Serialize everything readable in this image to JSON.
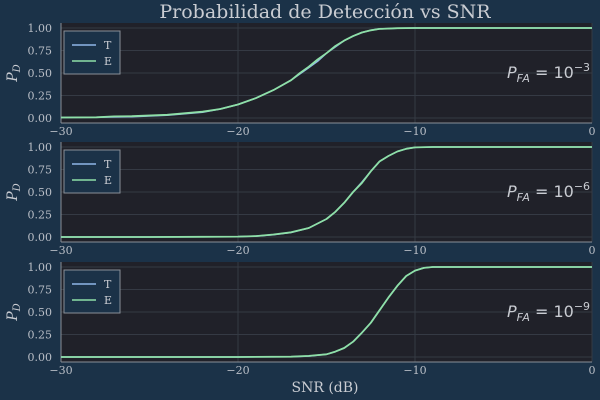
{
  "chart_data": {
    "type": "line",
    "title": "Probabilidad de Detección vs SNR",
    "xlabel": "SNR (dB)",
    "xlim": [
      -30,
      0
    ],
    "ylim": [
      0,
      1
    ],
    "x_ticks": [
      -30,
      -20,
      -10,
      0
    ],
    "x_tick_labels": [
      "−30",
      "−20",
      "−10",
      "0"
    ],
    "y_ticks": [
      0,
      0.25,
      0.5,
      0.75,
      1
    ],
    "y_tick_labels": [
      "0.00",
      "0.25",
      "0.50",
      "0.75",
      "1.00"
    ],
    "grid": true,
    "legend_placement": "top-left",
    "colors": {
      "T": "#8fb6e8",
      "E": "#8ee0a8"
    },
    "subplots": [
      {
        "ylabel_main": "P",
        "ylabel_sub": "D",
        "annotation": {
          "base": "P",
          "sub": "FA",
          "eq": " = 10",
          "sup": "−3"
        },
        "series": [
          {
            "name": "T",
            "x": [
              -30,
              -28,
              -26,
              -24,
              -22,
              -21,
              -20,
              -19,
              -18,
              -17,
              -16,
              -15.5,
              -15,
              -14.5,
              -14,
              -13.5,
              -13,
              -12.5,
              -12,
              -11,
              -10,
              -8,
              -5,
              0
            ],
            "y": [
              0.005,
              0.008,
              0.015,
              0.03,
              0.065,
              0.1,
              0.15,
              0.22,
              0.31,
              0.42,
              0.56,
              0.63,
              0.72,
              0.79,
              0.86,
              0.91,
              0.95,
              0.975,
              0.99,
              0.998,
              1,
              1,
              1,
              1
            ]
          },
          {
            "name": "E",
            "x": [
              -30,
              -28,
              -27,
              -26,
              -24,
              -22,
              -21,
              -20,
              -19,
              -18,
              -17,
              -16.5,
              -16,
              -15.5,
              -15,
              -14.5,
              -14,
              -13.5,
              -13,
              -12.5,
              -12,
              -11,
              -10,
              -8,
              -5,
              0
            ],
            "y": [
              0.005,
              0.008,
              0.018,
              0.02,
              0.035,
              0.07,
              0.1,
              0.15,
              0.22,
              0.31,
              0.42,
              0.5,
              0.57,
              0.65,
              0.72,
              0.8,
              0.86,
              0.91,
              0.95,
              0.975,
              0.99,
              0.998,
              1,
              1,
              1,
              1
            ]
          }
        ]
      },
      {
        "ylabel_main": "P",
        "ylabel_sub": "D",
        "annotation": {
          "base": "P",
          "sub": "FA",
          "eq": " = 10",
          "sup": "−6"
        },
        "series": [
          {
            "name": "T",
            "x": [
              -30,
              -25,
              -22,
              -20,
              -19,
              -18,
              -17,
              -16,
              -15,
              -14.5,
              -14,
              -13.5,
              -13,
              -12.5,
              -12,
              -11.5,
              -11,
              -10.5,
              -10,
              -9,
              -8,
              -5,
              0
            ],
            "y": [
              0,
              0,
              0.002,
              0.005,
              0.01,
              0.025,
              0.05,
              0.1,
              0.2,
              0.28,
              0.38,
              0.5,
              0.61,
              0.73,
              0.84,
              0.9,
              0.95,
              0.98,
              0.995,
              1,
              1,
              1,
              1
            ]
          },
          {
            "name": "E",
            "x": [
              -30,
              -25,
              -22,
              -20,
              -19,
              -18,
              -17,
              -16,
              -15,
              -14.5,
              -14,
              -13.5,
              -13,
              -12.5,
              -12,
              -11.5,
              -11,
              -10.5,
              -10,
              -9,
              -8,
              -5,
              0
            ],
            "y": [
              0,
              0,
              0.002,
              0.005,
              0.01,
              0.028,
              0.052,
              0.1,
              0.2,
              0.28,
              0.38,
              0.5,
              0.6,
              0.73,
              0.84,
              0.9,
              0.95,
              0.98,
              0.995,
              1,
              1,
              1,
              1
            ]
          }
        ]
      },
      {
        "ylabel_main": "P",
        "ylabel_sub": "D",
        "annotation": {
          "base": "P",
          "sub": "FA",
          "eq": " = 10",
          "sup": "−9"
        },
        "series": [
          {
            "name": "T",
            "x": [
              -30,
              -20,
              -17,
              -16,
              -15,
              -14.5,
              -14,
              -13.5,
              -13,
              -12.5,
              -12,
              -11.5,
              -11,
              -10.5,
              -10,
              -9.5,
              -9,
              -8,
              -5,
              0
            ],
            "y": [
              0,
              0,
              0.003,
              0.01,
              0.03,
              0.06,
              0.1,
              0.17,
              0.27,
              0.38,
              0.52,
              0.66,
              0.79,
              0.9,
              0.96,
              0.99,
              1,
              1,
              1,
              1
            ]
          },
          {
            "name": "E",
            "x": [
              -30,
              -20,
              -17,
              -16,
              -15,
              -14.5,
              -14,
              -13.5,
              -13,
              -12.5,
              -12,
              -11.5,
              -11,
              -10.5,
              -10,
              -9.5,
              -9,
              -8,
              -5,
              0
            ],
            "y": [
              0,
              0,
              0.003,
              0.012,
              0.03,
              0.06,
              0.1,
              0.17,
              0.27,
              0.38,
              0.52,
              0.66,
              0.79,
              0.9,
              0.96,
              0.99,
              1,
              1,
              1,
              1
            ]
          }
        ]
      }
    ]
  }
}
